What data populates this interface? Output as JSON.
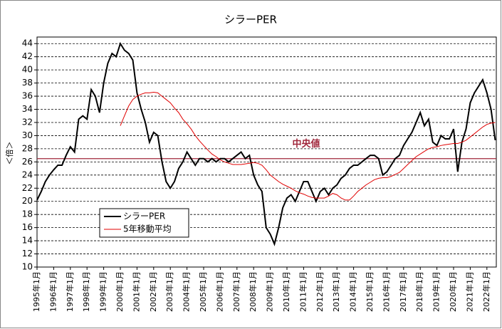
{
  "chart_data": {
    "type": "line",
    "title": "シラーPER",
    "y_label": "＜倍＞",
    "x": [
      "1995年1月",
      "1995年4月",
      "1995年7月",
      "1995年10月",
      "1996年1月",
      "1996年4月",
      "1996年7月",
      "1996年10月",
      "1997年1月",
      "1997年4月",
      "1997年7月",
      "1997年10月",
      "1998年1月",
      "1998年4月",
      "1998年7月",
      "1998年10月",
      "1999年1月",
      "1999年4月",
      "1999年7月",
      "1999年10月",
      "2000年1月",
      "2000年4月",
      "2000年7月",
      "2000年10月",
      "2001年1月",
      "2001年4月",
      "2001年7月",
      "2001年10月",
      "2002年1月",
      "2002年4月",
      "2002年7月",
      "2002年10月",
      "2003年1月",
      "2003年4月",
      "2003年7月",
      "2003年10月",
      "2004年1月",
      "2004年4月",
      "2004年7月",
      "2004年10月",
      "2005年1月",
      "2005年4月",
      "2005年7月",
      "2005年10月",
      "2006年1月",
      "2006年4月",
      "2006年7月",
      "2006年10月",
      "2007年1月",
      "2007年4月",
      "2007年7月",
      "2007年10月",
      "2008年1月",
      "2008年4月",
      "2008年7月",
      "2008年10月",
      "2009年1月",
      "2009年4月",
      "2009年7月",
      "2009年10月",
      "2010年1月",
      "2010年4月",
      "2010年7月",
      "2010年10月",
      "2011年1月",
      "2011年4月",
      "2011年7月",
      "2011年10月",
      "2012年1月",
      "2012年4月",
      "2012年7月",
      "2012年10月",
      "2013年1月",
      "2013年4月",
      "2013年7月",
      "2013年10月",
      "2014年1月",
      "2014年4月",
      "2014年7月",
      "2014年10月",
      "2015年1月",
      "2015年4月",
      "2015年7月",
      "2015年10月",
      "2016年1月",
      "2016年4月",
      "2016年7月",
      "2016年10月",
      "2017年1月",
      "2017年4月",
      "2017年7月",
      "2017年10月",
      "2018年1月",
      "2018年4月",
      "2018年7月",
      "2018年10月",
      "2019年1月",
      "2019年4月",
      "2019年7月",
      "2019年10月",
      "2020年1月",
      "2020年4月",
      "2020年7月",
      "2020年10月",
      "2021年1月",
      "2021年4月",
      "2021年7月",
      "2021年10月",
      "2022年1月",
      "2022年4月",
      "2022年7月"
    ],
    "series": [
      {
        "name": "シラーPER",
        "color": "#000000",
        "values": [
          20.2,
          21.5,
          23,
          24,
          24.8,
          25.5,
          25.5,
          27,
          28.3,
          27.5,
          32.5,
          33,
          32.5,
          37,
          36,
          33.5,
          38,
          41,
          42.5,
          42,
          44,
          43,
          42.5,
          41.5,
          36.5,
          34,
          32,
          29,
          30.5,
          30,
          26,
          23,
          22,
          23,
          25,
          26,
          27.5,
          26.5,
          25.5,
          26.5,
          26.5,
          26,
          26.5,
          26,
          26.5,
          26.5,
          26,
          26.5,
          27,
          27.5,
          26.5,
          27,
          24,
          22.5,
          21.5,
          16,
          15,
          13.5,
          16,
          19,
          20.5,
          21,
          20,
          21.5,
          23,
          23,
          21.5,
          20,
          21.5,
          22,
          21,
          22,
          22.5,
          23.5,
          24,
          25,
          25.5,
          25.5,
          26,
          26.5,
          27,
          27,
          26.5,
          24,
          24.5,
          25.5,
          26.5,
          27,
          28.5,
          29.5,
          30.5,
          32,
          33.5,
          31.5,
          32.5,
          29,
          28.5,
          30,
          29.5,
          29.5,
          31,
          24.5,
          29,
          31,
          35,
          36.5,
          37.5,
          38.5,
          36.5,
          34,
          29.3
        ]
      },
      {
        "name": "5年移動平均",
        "color": "#e00000",
        "values": [
          null,
          null,
          null,
          null,
          null,
          null,
          null,
          null,
          null,
          null,
          null,
          null,
          null,
          null,
          null,
          null,
          null,
          null,
          null,
          null,
          31.5,
          33,
          34.5,
          35.5,
          36,
          36.3,
          36.5,
          36.5,
          36.6,
          36.5,
          36,
          35.5,
          35,
          34.2,
          33.5,
          32.5,
          31.8,
          31,
          30,
          29.2,
          28.5,
          27.8,
          27.2,
          26.8,
          26.3,
          26,
          25.8,
          25.6,
          25.6,
          25.6,
          25.7,
          25.8,
          25.9,
          25.8,
          25.5,
          24.8,
          24,
          23.5,
          23,
          22.6,
          22.3,
          22,
          21.6,
          21.3,
          21.1,
          20.8,
          20.6,
          20.5,
          20.5,
          20.5,
          20.8,
          21.2,
          21,
          20.5,
          20.2,
          20.2,
          20.8,
          21.5,
          22,
          22.5,
          22.9,
          23.3,
          23.5,
          23.6,
          23.6,
          23.8,
          24.1,
          24.4,
          25,
          25.6,
          26.2,
          26.8,
          27.2,
          27.6,
          28,
          28.2,
          28.3,
          28.5,
          28.6,
          28.7,
          28.8,
          28.8,
          29,
          29.3,
          29.8,
          30.3,
          30.8,
          31.3,
          31.7,
          31.9,
          32
        ]
      }
    ],
    "median": {
      "label": "中央値",
      "value": 26.5,
      "color": "#a0283c"
    },
    "ylim": [
      10,
      45
    ],
    "yticks": [
      10,
      12,
      14,
      16,
      18,
      20,
      22,
      24,
      26,
      28,
      30,
      32,
      34,
      36,
      38,
      40,
      42,
      44
    ],
    "xticks": [
      "1995年1月",
      "1996年1月",
      "1997年1月",
      "1998年1月",
      "1999年1月",
      "2000年1月",
      "2001年1月",
      "2002年1月",
      "2003年1月",
      "2004年1月",
      "2005年1月",
      "2006年1月",
      "2007年1月",
      "2008年1月",
      "2009年1月",
      "2010年1月",
      "2011年1月",
      "2012年1月",
      "2013年1月",
      "2014年1月",
      "2015年1月",
      "2016年1月",
      "2017年1月",
      "2018年1月",
      "2019年1月",
      "2020年1月",
      "2021年1月",
      "2022年1月"
    ],
    "grid": true,
    "legend": "lower left"
  }
}
